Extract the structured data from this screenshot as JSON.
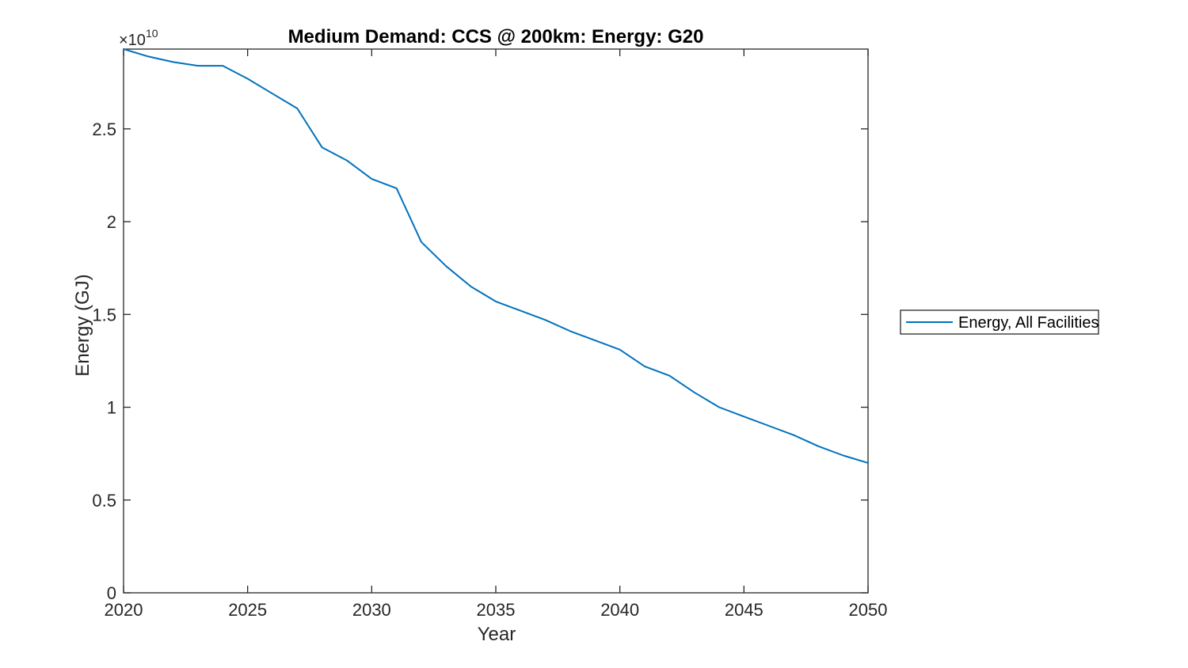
{
  "figure": {
    "background": "#ffffff",
    "axis_color": "#262626"
  },
  "chart_data": {
    "type": "line",
    "title": "Medium Demand: CCS @ 200km: Energy: G20",
    "xlabel": "Year",
    "ylabel": "Energy (GJ)",
    "y_axis_multiplier": {
      "base": "×10",
      "exponent": "10"
    },
    "y_unit": "GJ",
    "y_values_scale": "values are in units of 10^10 GJ as read against the axis",
    "grid": false,
    "box": true,
    "xlim": [
      2020,
      2050
    ],
    "ylim_1e10_GJ": [
      0,
      2.93
    ],
    "x_ticks": [
      "2020",
      "2025",
      "2030",
      "2035",
      "2040",
      "2045",
      "2050"
    ],
    "x_tick_values": [
      2020,
      2025,
      2030,
      2035,
      2040,
      2045,
      2050
    ],
    "y_ticks": [
      "0",
      "0.5",
      "1",
      "1.5",
      "2",
      "2.5"
    ],
    "y_tick_values": [
      0,
      0.5,
      1,
      1.5,
      2,
      2.5
    ],
    "x": [
      2020,
      2021,
      2022,
      2023,
      2024,
      2025,
      2026,
      2027,
      2028,
      2029,
      2030,
      2031,
      2032,
      2033,
      2034,
      2035,
      2036,
      2037,
      2038,
      2039,
      2040,
      2041,
      2042,
      2043,
      2044,
      2045,
      2046,
      2047,
      2048,
      2049,
      2050
    ],
    "series": [
      {
        "name": "Energy, All Facilities",
        "color": "#0072BD",
        "values_1e10_GJ": [
          2.93,
          2.89,
          2.86,
          2.84,
          2.84,
          2.77,
          2.69,
          2.61,
          2.4,
          2.33,
          2.23,
          2.18,
          1.89,
          1.76,
          1.65,
          1.57,
          1.52,
          1.47,
          1.41,
          1.36,
          1.31,
          1.22,
          1.17,
          1.08,
          1.0,
          0.95,
          0.9,
          0.85,
          0.79,
          0.74,
          0.7
        ]
      }
    ],
    "legend": {
      "position": "outside-right",
      "entries": [
        {
          "label": "Energy, All Facilities",
          "color": "#0072BD"
        }
      ]
    }
  }
}
